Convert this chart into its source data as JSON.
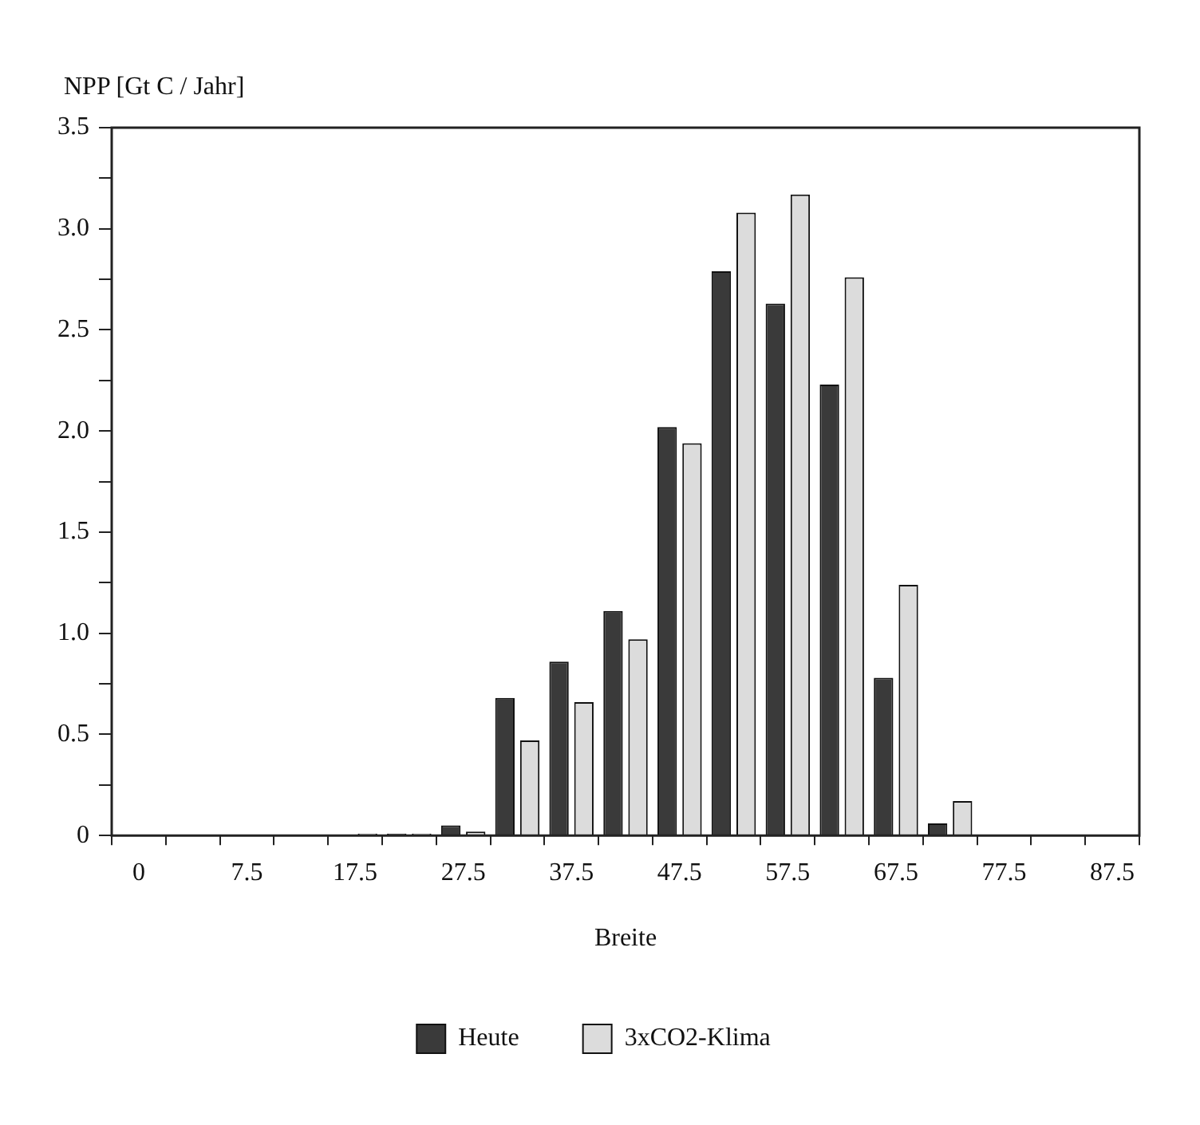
{
  "chart_data": {
    "type": "bar",
    "ylabel": "NPP [Gt C / Jahr]",
    "xlabel": "Breite",
    "categories": [
      "0",
      null,
      "7.5",
      null,
      "17.5",
      null,
      "27.5",
      null,
      "37.5",
      null,
      "47.5",
      null,
      "57.5",
      null,
      "67.5",
      null,
      "77.5",
      null,
      "87.5"
    ],
    "series": [
      {
        "name": "Heute",
        "color": "#3a3a3a",
        "values": [
          0,
          0,
          0,
          0,
          0.005,
          0.01,
          0.05,
          0.68,
          0.86,
          1.11,
          2.02,
          2.79,
          2.63,
          2.23,
          0.78,
          0.06,
          0.005,
          0,
          0
        ]
      },
      {
        "name": "3xCO2-Klima",
        "color": "#dcdcdc",
        "values": [
          0,
          0,
          0,
          0,
          0.01,
          0.01,
          0.02,
          0.47,
          0.66,
          0.97,
          1.94,
          3.08,
          3.17,
          2.76,
          1.24,
          0.17,
          0.005,
          0,
          0
        ]
      }
    ],
    "ylim": [
      0,
      3.5
    ],
    "yticks": [
      0,
      {
        "value": 0.25,
        "label": null
      },
      {
        "value": 0.5,
        "label": "0.5"
      },
      {
        "value": 0.75,
        "label": null
      },
      {
        "value": 1,
        "label": "1.0"
      },
      {
        "value": 1.25,
        "label": null
      },
      {
        "value": 1.5,
        "label": "1.5"
      },
      {
        "value": 1.75,
        "label": null
      },
      {
        "value": 2,
        "label": "2.0"
      },
      {
        "value": 2.25,
        "label": null
      },
      {
        "value": 2.5,
        "label": "2.5"
      },
      {
        "value": 2.75,
        "label": null
      },
      {
        "value": 3,
        "label": "3.0"
      },
      {
        "value": 3.25,
        "label": null
      },
      {
        "value": 3.5,
        "label": "3.5"
      }
    ],
    "grid": false,
    "legend": "bottom"
  }
}
